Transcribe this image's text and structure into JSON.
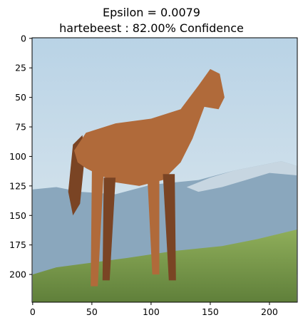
{
  "chart_data": {
    "type": "image",
    "title_lines": [
      "Epsilon = 0.0079",
      "hartebeest : 82.00% Confidence"
    ],
    "xlabel": "",
    "ylabel": "",
    "x_ticks": [
      0,
      50,
      100,
      150,
      200
    ],
    "y_ticks": [
      0,
      25,
      50,
      75,
      100,
      125,
      150,
      175,
      200
    ],
    "xlim": [
      -0.5,
      223.5
    ],
    "ylim": [
      223.5,
      -0.5
    ],
    "image_subject": "chestnut horse standing on grassy hill with mountains behind"
  },
  "colors": {
    "sky_top": "#b9d3e6",
    "sky_bottom": "#dfe9ee",
    "mountain": "#8aa7bd",
    "mountain_snow": "#d6e2ea",
    "grass": "#8fae5a",
    "grass_dark": "#5f7f3a",
    "horse": "#b06a3a",
    "horse_dark": "#7a4424"
  }
}
